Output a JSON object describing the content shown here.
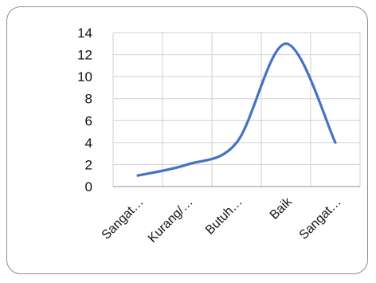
{
  "chart_data": {
    "type": "line",
    "categories": [
      "Sangat…",
      "Kurang/…",
      "Butuh…",
      "Baik",
      "Sangat…"
    ],
    "values": [
      1,
      2,
      4,
      13,
      4
    ],
    "smoothed": true,
    "title": "",
    "xlabel": "",
    "ylabel": "",
    "ylim": [
      0,
      14
    ],
    "yticks": [
      0,
      2,
      4,
      6,
      8,
      10,
      12,
      14
    ],
    "grid": true,
    "legend": "none",
    "series_color": "#4472c4",
    "grid_color": "#d0d0d0",
    "axis_color": "#8c8c8c"
  }
}
